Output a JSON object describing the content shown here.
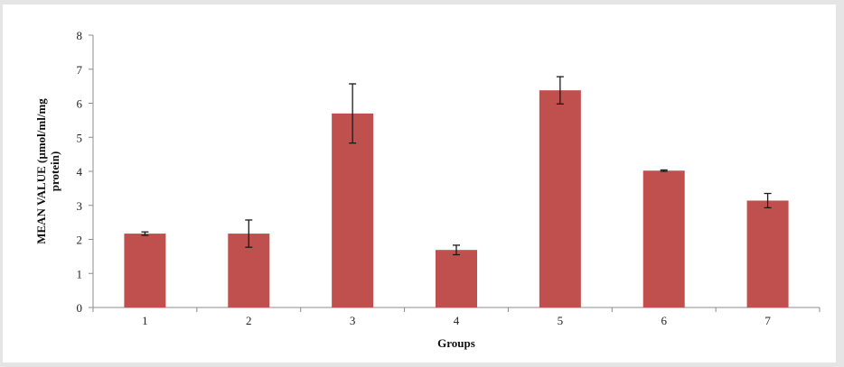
{
  "chart_data": {
    "type": "bar",
    "title": "",
    "xlabel": "Groups",
    "ylabel": "MEAN VALUE (µmol/ml/mg protein)",
    "ylabel_lines": [
      "MEAN VALUE (µmol/ml/mg",
      "protein)"
    ],
    "categories": [
      "1",
      "2",
      "3",
      "4",
      "5",
      "6",
      "7"
    ],
    "values": [
      2.17,
      2.17,
      5.7,
      1.69,
      6.38,
      4.02,
      3.14
    ],
    "error": [
      0.05,
      0.4,
      0.87,
      0.14,
      0.4,
      0.02,
      0.21
    ],
    "ylim": [
      0,
      8
    ],
    "yticks": [
      "0",
      "1",
      "2",
      "3",
      "4",
      "5",
      "6",
      "7",
      "8"
    ],
    "grid": false,
    "legend": null,
    "bar_color": "#c0504d",
    "error_bar_color": "#1a1a1a",
    "axis_color": "#8c8c8c"
  }
}
